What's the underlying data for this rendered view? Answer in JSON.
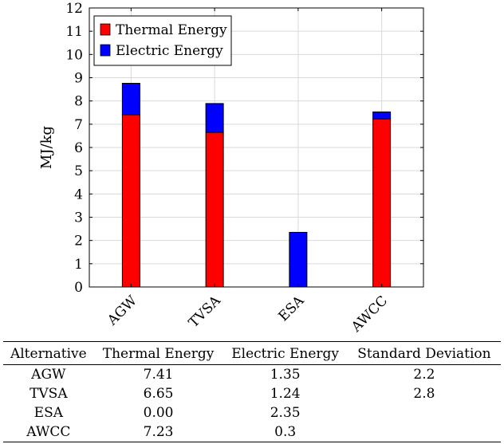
{
  "chart_data": {
    "type": "bar",
    "stacked": true,
    "categories": [
      "AGW",
      "TVSA",
      "ESA",
      "AWCC"
    ],
    "series": [
      {
        "name": "Thermal Energy",
        "color": "#ff0000",
        "values": [
          7.41,
          6.65,
          0.0,
          7.23
        ]
      },
      {
        "name": "Electric Energy",
        "color": "#0000ff",
        "values": [
          1.35,
          1.24,
          2.35,
          0.3
        ]
      }
    ],
    "title": "",
    "xlabel": "",
    "ylabel": "MJ/kg",
    "ylim": [
      0,
      12
    ],
    "yticks": [
      0,
      1,
      2,
      3,
      4,
      5,
      6,
      7,
      8,
      9,
      10,
      11,
      12
    ],
    "grid": true,
    "legend_position": "top-left"
  },
  "table": {
    "headers": [
      "Alternative",
      "Thermal Energy",
      "Electric Energy",
      "Standard Deviation"
    ],
    "rows": [
      [
        "AGW",
        "7.41",
        "1.35",
        "2.2"
      ],
      [
        "TVSA",
        "6.65",
        "1.24",
        "2.8"
      ],
      [
        "ESA",
        "0.00",
        "2.35",
        ""
      ],
      [
        "AWCC",
        "7.23",
        "0.3",
        ""
      ]
    ]
  }
}
